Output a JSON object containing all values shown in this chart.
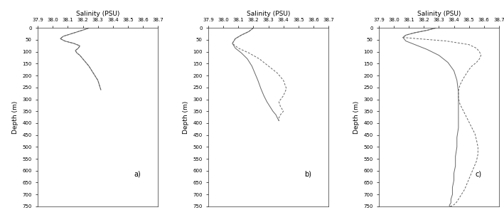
{
  "title": "Salinity (PSU)",
  "xlabel_top_ticks": [
    37.9,
    38.0,
    38.1,
    38.2,
    38.3,
    38.4,
    38.5,
    38.6,
    38.7
  ],
  "ylim": [
    750,
    0
  ],
  "yticks": [
    0,
    50,
    100,
    150,
    200,
    250,
    300,
    350,
    400,
    450,
    500,
    550,
    600,
    650,
    700,
    750
  ],
  "xlim": [
    37.9,
    38.7
  ],
  "ylabel": "Depth (m)",
  "panel_labels": [
    "a)",
    "b)",
    "c)"
  ],
  "background_color": "#ffffff",
  "line_color": "#666666",
  "panel_a": {
    "solid_sal": [
      38.24,
      38.22,
      38.17,
      38.12,
      38.07,
      38.05,
      38.08,
      38.14,
      38.18,
      38.17,
      38.15,
      38.16,
      38.18,
      38.2,
      38.22,
      38.24,
      38.26,
      38.28,
      38.3,
      38.31,
      38.32
    ],
    "solid_dep": [
      0,
      5,
      15,
      25,
      35,
      45,
      55,
      65,
      75,
      85,
      95,
      105,
      115,
      130,
      145,
      160,
      180,
      200,
      220,
      240,
      260
    ],
    "dashed_sal": [
      38.24,
      38.22,
      38.17,
      38.12,
      38.07,
      38.05,
      38.08,
      38.14,
      38.18,
      38.17,
      38.15,
      38.16,
      38.18,
      38.2,
      38.22,
      38.24,
      38.26,
      38.28,
      38.3,
      38.31,
      38.32
    ],
    "dashed_dep": [
      0,
      5,
      15,
      25,
      35,
      45,
      55,
      65,
      75,
      85,
      95,
      105,
      115,
      130,
      145,
      160,
      180,
      200,
      220,
      240,
      260
    ]
  },
  "panel_b": {
    "solid_sal": [
      38.2,
      38.17,
      38.12,
      38.08,
      38.06,
      38.08,
      38.12,
      38.16,
      38.19,
      38.21,
      38.23,
      38.25,
      38.27,
      38.29,
      38.31,
      38.33,
      38.35,
      38.36,
      38.37
    ],
    "solid_dep": [
      0,
      15,
      30,
      45,
      65,
      85,
      105,
      130,
      160,
      190,
      220,
      255,
      285,
      310,
      330,
      350,
      365,
      378,
      390
    ],
    "dashed_sal": [
      38.2,
      38.17,
      38.12,
      38.08,
      38.06,
      38.1,
      38.17,
      38.24,
      38.3,
      38.36,
      38.4,
      38.42,
      38.4,
      38.37,
      38.38,
      38.4,
      38.38,
      38.37,
      38.37
    ],
    "dashed_dep": [
      0,
      15,
      30,
      45,
      65,
      85,
      105,
      130,
      160,
      190,
      220,
      255,
      285,
      310,
      330,
      350,
      365,
      378,
      390
    ]
  },
  "panel_c": {
    "solid_sal": [
      38.28,
      38.22,
      38.14,
      38.08,
      38.06,
      38.08,
      38.14,
      38.22,
      38.3,
      38.36,
      38.4,
      38.42,
      38.43,
      38.43,
      38.43,
      38.43,
      38.42,
      38.42,
      38.41,
      38.41,
      38.4,
      38.4,
      38.39,
      38.39,
      38.38,
      38.38,
      38.37,
      38.37
    ],
    "solid_dep": [
      0,
      10,
      20,
      30,
      40,
      55,
      70,
      90,
      115,
      145,
      180,
      220,
      270,
      320,
      370,
      420,
      460,
      500,
      540,
      580,
      610,
      640,
      670,
      700,
      720,
      735,
      745,
      750
    ],
    "dashed_sal": [
      38.28,
      38.22,
      38.14,
      38.08,
      38.06,
      38.35,
      38.5,
      38.55,
      38.57,
      38.58,
      38.57,
      38.55,
      38.52,
      38.5,
      38.48,
      38.46,
      38.44,
      38.43,
      38.43,
      38.44,
      38.46,
      38.48,
      38.5,
      38.52,
      38.54,
      38.55,
      38.56,
      38.56,
      38.55,
      38.53,
      38.51,
      38.49,
      38.47,
      38.45,
      38.43,
      38.42,
      38.41,
      38.4,
      38.39,
      38.38,
      38.37
    ],
    "dashed_dep": [
      0,
      10,
      20,
      30,
      40,
      55,
      70,
      85,
      100,
      115,
      130,
      145,
      160,
      175,
      195,
      215,
      240,
      265,
      295,
      320,
      345,
      370,
      395,
      420,
      445,
      470,
      500,
      530,
      560,
      590,
      620,
      650,
      680,
      700,
      720,
      730,
      738,
      743,
      747,
      749,
      750
    ]
  }
}
